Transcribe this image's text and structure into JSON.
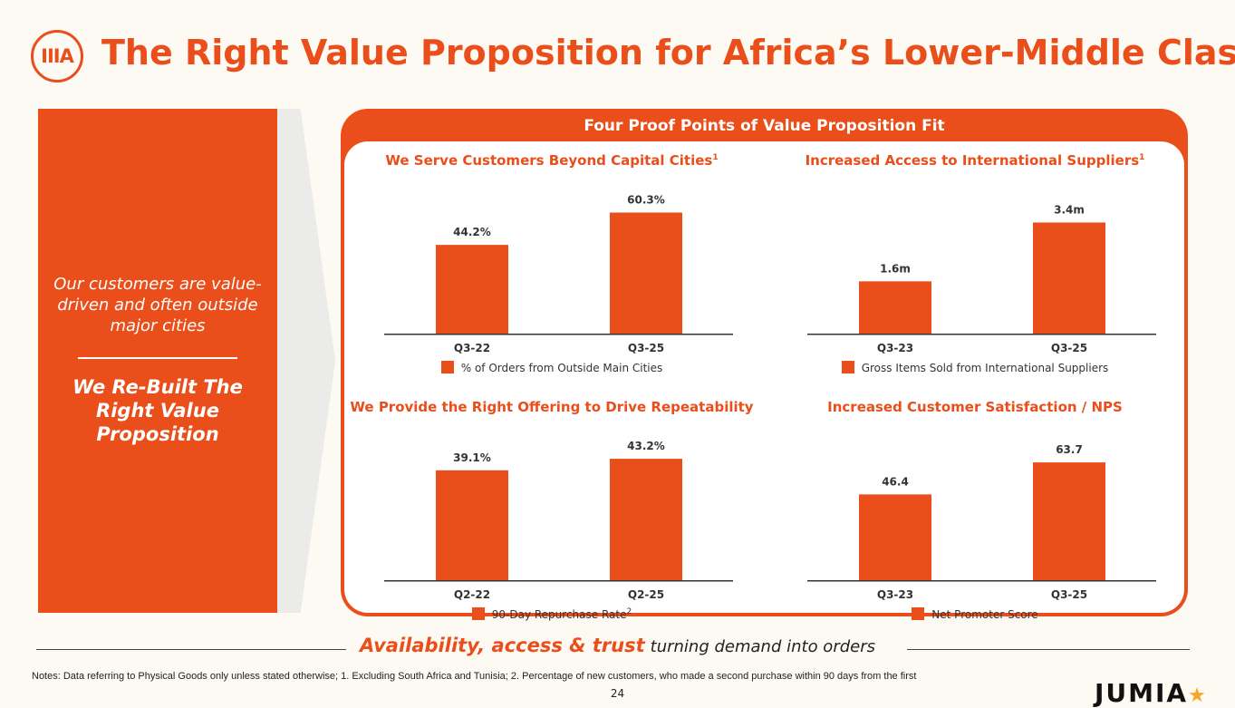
{
  "badge": "IIIA",
  "title": "The Right Value Proposition for Africa’s Lower-Middle Class",
  "side": {
    "tagline": "Our customers are value-driven and often outside major cities",
    "headline": "We Re-Built The Right Value Proposition"
  },
  "frame_title": "Four Proof Points of Value Proposition Fit",
  "colors": {
    "accent": "#e94e1b",
    "background": "#fdf9f3"
  },
  "chart_data": [
    {
      "type": "bar",
      "title": "We Serve Customers Beyond Capital Cities",
      "title_sup": "1",
      "categories": [
        "Q3-22",
        "Q3-25"
      ],
      "values": [
        44.2,
        60.3
      ],
      "labels": [
        "44.2%",
        "60.3%"
      ],
      "legend": "% of Orders from Outside Main Cities",
      "legend_sup": "",
      "ylim": [
        0,
        70
      ]
    },
    {
      "type": "bar",
      "title": "Increased Access to International Suppliers",
      "title_sup": "1",
      "categories": [
        "Q3-23",
        "Q3-25"
      ],
      "values": [
        1.6,
        3.4
      ],
      "labels": [
        "1.6m",
        "3.4m"
      ],
      "legend": "Gross Items Sold from International Suppliers",
      "legend_sup": "",
      "ylim": [
        0,
        4.3
      ]
    },
    {
      "type": "bar",
      "title": "We Provide the Right Offering to Drive Repeatability",
      "title_sup": "",
      "categories": [
        "Q2-22",
        "Q2-25"
      ],
      "values": [
        39.1,
        43.2
      ],
      "labels": [
        "39.1%",
        "43.2%"
      ],
      "legend": "90-Day Repurchase Rate",
      "legend_sup": "2",
      "ylim": [
        0,
        50
      ]
    },
    {
      "type": "bar",
      "title": "Increased Customer Satisfaction / NPS",
      "title_sup": "",
      "categories": [
        "Q3-23",
        "Q3-25"
      ],
      "values": [
        46.4,
        63.7
      ],
      "labels": [
        "46.4",
        "63.7"
      ],
      "legend": "Net Promoter Score",
      "legend_sup": "",
      "ylim": [
        0,
        76
      ]
    }
  ],
  "bottom": {
    "accent": "Availability, access & trust",
    "rest": "turning demand into orders"
  },
  "footnote": "Notes: Data referring to Physical Goods only unless stated otherwise; 1. Excluding South Africa and Tunisia; 2. Percentage of new customers, who made a second purchase within 90 days from the first",
  "page_number": "24",
  "brand": {
    "name": "JUMIA",
    "icon": "star-icon"
  }
}
